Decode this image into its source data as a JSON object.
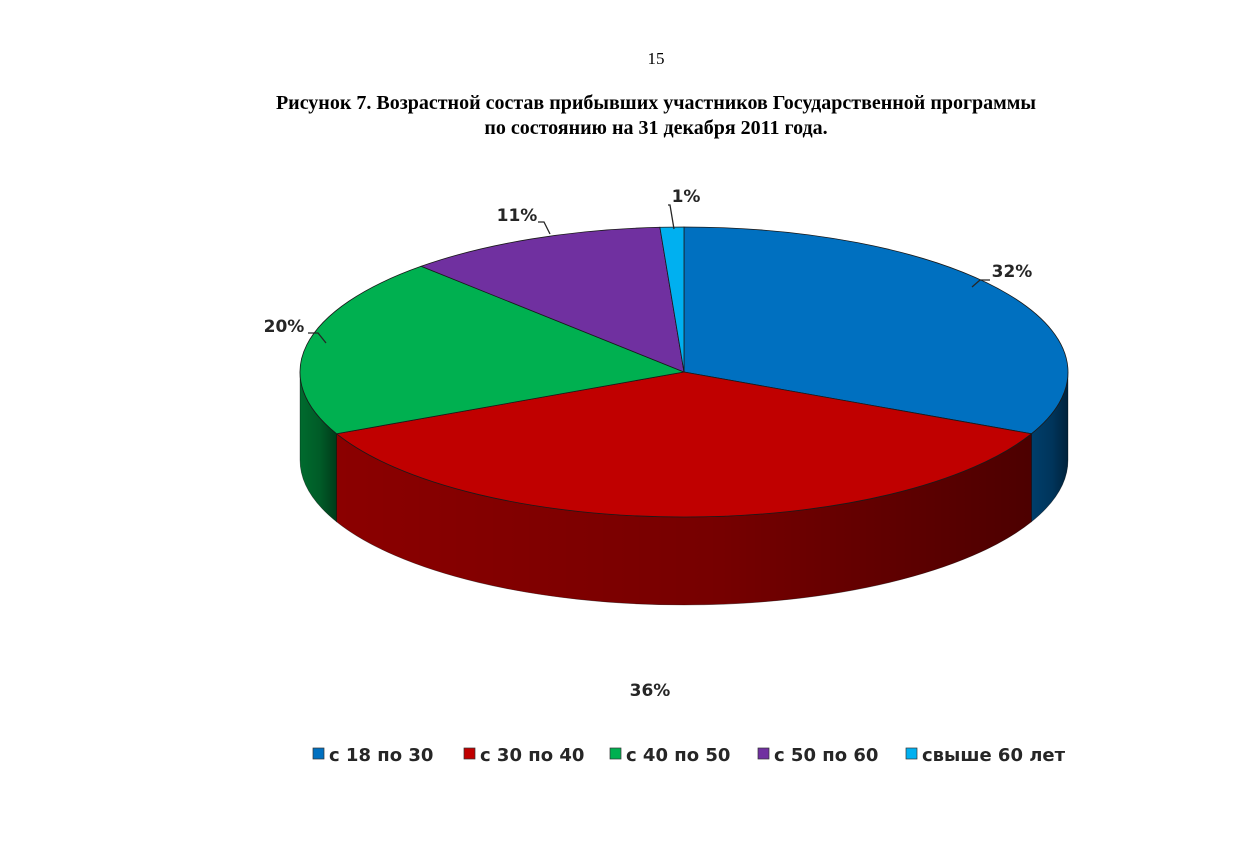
{
  "page": {
    "number": "15",
    "title_line1": "Рисунок 7. Возрастной состав прибывших участников Государственной программы",
    "title_line2": "по состоянию на 31 декабря 2011 года."
  },
  "chart_data": {
    "type": "pie",
    "style": "3d",
    "legend_placement": "bottom",
    "categories": [
      "с 18 по 30",
      "с 30 по 40",
      "с 40 по 50",
      "с 50 по 60",
      "свыше 60 лет"
    ],
    "values": [
      32,
      36,
      20,
      11,
      1
    ],
    "labels": [
      "32%",
      "36%",
      "20%",
      "11%",
      "1%"
    ],
    "colors": [
      "#0070C0",
      "#C00000",
      "#00B050",
      "#7030A0",
      "#00B0F0"
    ],
    "side_colors": [
      "#003E6B",
      "#8B0000",
      "#006B2E",
      "#3D1A5A",
      "#006C94"
    ]
  }
}
